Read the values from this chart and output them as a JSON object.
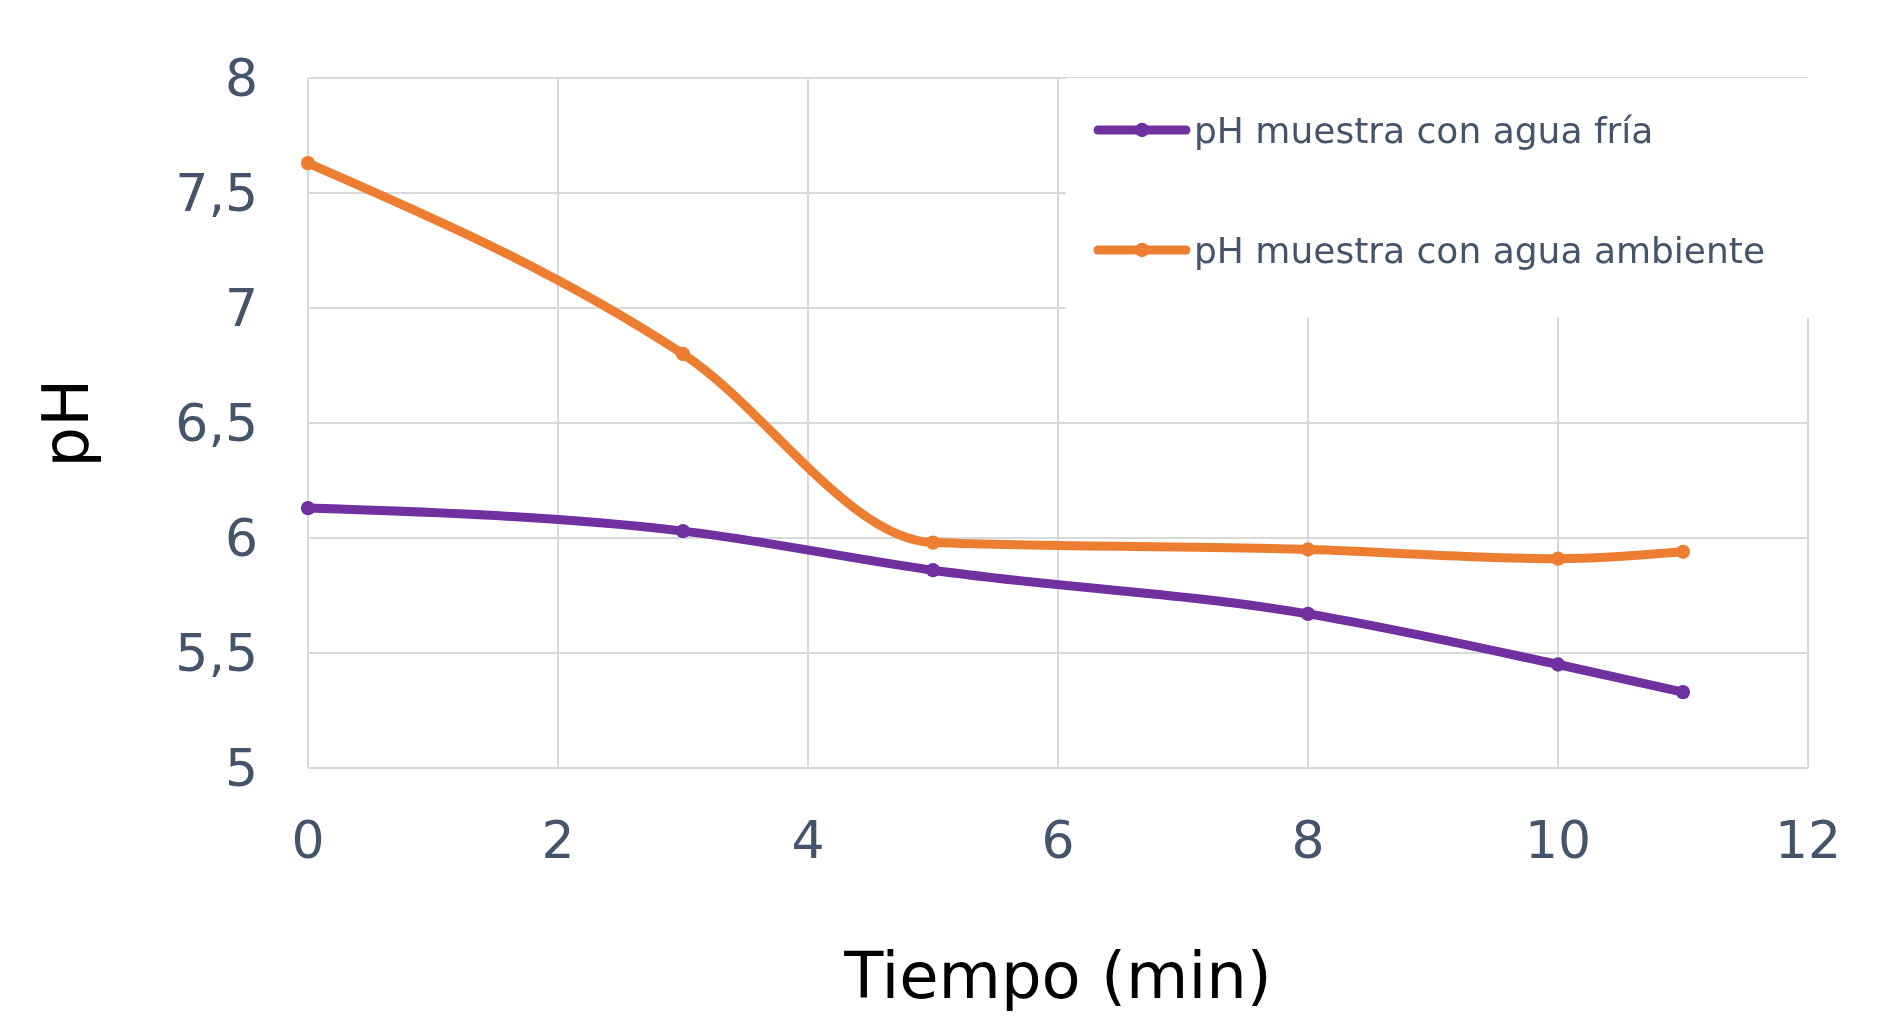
{
  "chart_data": {
    "type": "line",
    "xlabel": "Tiempo (min)",
    "ylabel": "pH",
    "x": [
      0,
      3,
      5,
      8,
      10,
      11
    ],
    "series": [
      {
        "name": "pH muestra con agua fría",
        "color": "#7030a0",
        "values": [
          6.13,
          6.03,
          5.86,
          5.67,
          5.45,
          5.33
        ]
      },
      {
        "name": "pH muestra con agua ambiente",
        "color": "#ed7d31",
        "values": [
          7.63,
          6.8,
          5.98,
          5.95,
          5.91,
          5.94
        ]
      }
    ],
    "xlim": [
      0,
      12
    ],
    "xticks": [
      0,
      2,
      4,
      6,
      8,
      10,
      12
    ],
    "ylim": [
      5,
      8
    ],
    "yticks": [
      5,
      {
        "value": 5.5,
        "label": "5,5"
      },
      6,
      {
        "value": 6.5,
        "label": "6,5"
      },
      7,
      {
        "value": 7.5,
        "label": "7,5"
      },
      8
    ],
    "grid": true,
    "legend": "top right",
    "marker": "circle",
    "line_style": "solid"
  }
}
